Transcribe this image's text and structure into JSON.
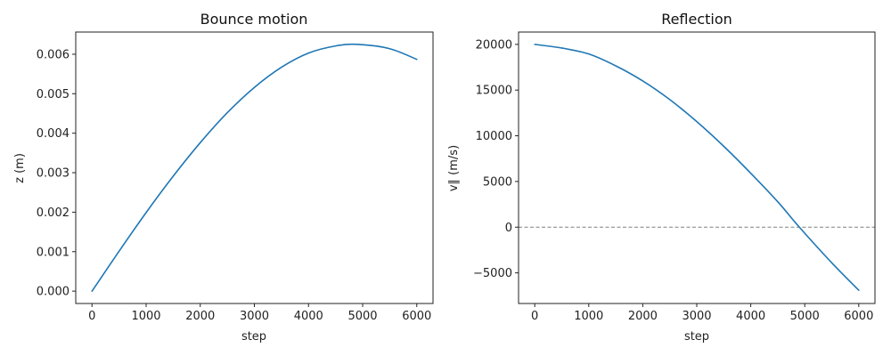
{
  "chart_data": [
    {
      "type": "line",
      "title": "Bounce motion",
      "xlabel": "step",
      "ylabel": "z (m)",
      "xlim": [
        -300,
        6300
      ],
      "ylim": [
        -0.0003125,
        0.006562
      ],
      "xticks": [
        0,
        1000,
        2000,
        3000,
        4000,
        5000,
        6000
      ],
      "yticks": [
        0.0,
        0.001,
        0.002,
        0.003,
        0.004,
        0.005,
        0.006
      ],
      "ytick_labels": [
        "0.000",
        "0.001",
        "0.002",
        "0.003",
        "0.004",
        "0.005",
        "0.006"
      ],
      "xtick_labels": [
        "0",
        "1000",
        "2000",
        "3000",
        "4000",
        "5000",
        "6000"
      ],
      "grid": false,
      "series": [
        {
          "color": "#1f77b4",
          "x": [
            0,
            500,
            1000,
            1500,
            2000,
            2500,
            3000,
            3500,
            4000,
            4500,
            4900,
            5500,
            6000
          ],
          "y": [
            0.0,
            0.00101,
            0.00199,
            0.00291,
            0.00376,
            0.00452,
            0.00516,
            0.00567,
            0.00603,
            0.00621,
            0.00625,
            0.00614,
            0.00587
          ]
        }
      ]
    },
    {
      "type": "line",
      "title": "Reflection",
      "xlabel": "step",
      "ylabel": "v∥ (m/s)",
      "xlim": [
        -300,
        6300
      ],
      "ylim": [
        -8350,
        21350
      ],
      "xticks": [
        0,
        1000,
        2000,
        3000,
        4000,
        5000,
        6000
      ],
      "yticks": [
        -5000,
        0,
        5000,
        10000,
        15000,
        20000
      ],
      "ytick_labels": [
        "−5000",
        "0",
        "5000",
        "10000",
        "15000",
        "20000"
      ],
      "xtick_labels": [
        "0",
        "1000",
        "2000",
        "3000",
        "4000",
        "5000",
        "6000"
      ],
      "grid": false,
      "hline": {
        "y": 0,
        "style": "dashed",
        "color": "#808080"
      },
      "series": [
        {
          "color": "#1f77b4",
          "x": [
            0,
            500,
            1000,
            1500,
            2000,
            2500,
            3000,
            3500,
            4000,
            4500,
            4900,
            5500,
            6000
          ],
          "y": [
            20000,
            19600,
            18950,
            17650,
            16000,
            13960,
            11550,
            8850,
            5900,
            2780,
            0,
            -3900,
            -6900
          ]
        }
      ]
    }
  ]
}
